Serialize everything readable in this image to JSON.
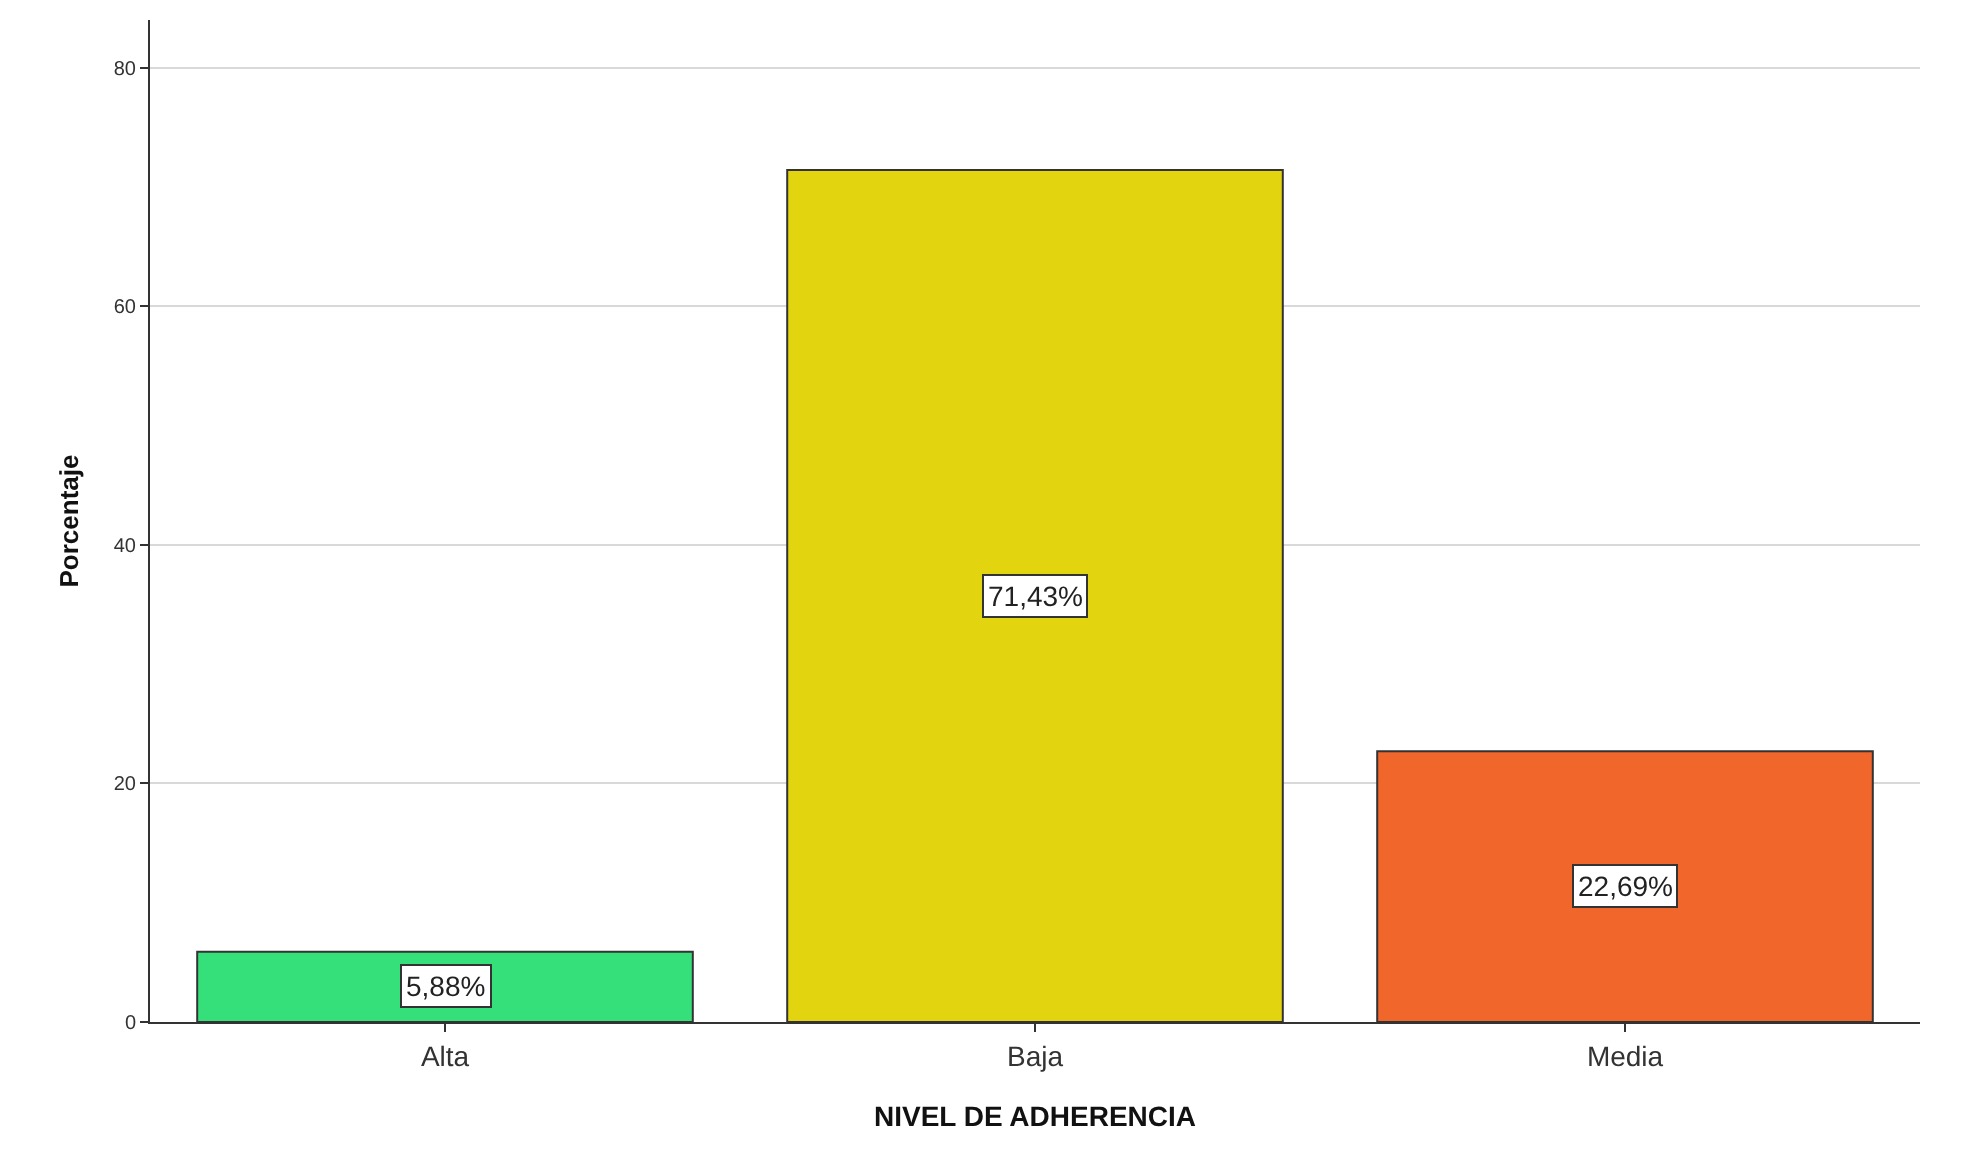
{
  "chart_data": {
    "type": "bar",
    "xlabel": "NIVEL DE ADHERENCIA",
    "ylabel": "Porcentaje",
    "categories": [
      "Alta",
      "Baja",
      "Media"
    ],
    "values": [
      5.88,
      71.43,
      22.69
    ],
    "colors": [
      "#35e07a",
      "#e2d40e",
      "#f0662b"
    ],
    "value_labels": [
      "5,88%",
      "71,43%",
      "22,69%"
    ],
    "ylim": [
      0,
      84
    ],
    "yticks": [
      0,
      20,
      40,
      60,
      80
    ],
    "grid": "y",
    "legend": false
  }
}
